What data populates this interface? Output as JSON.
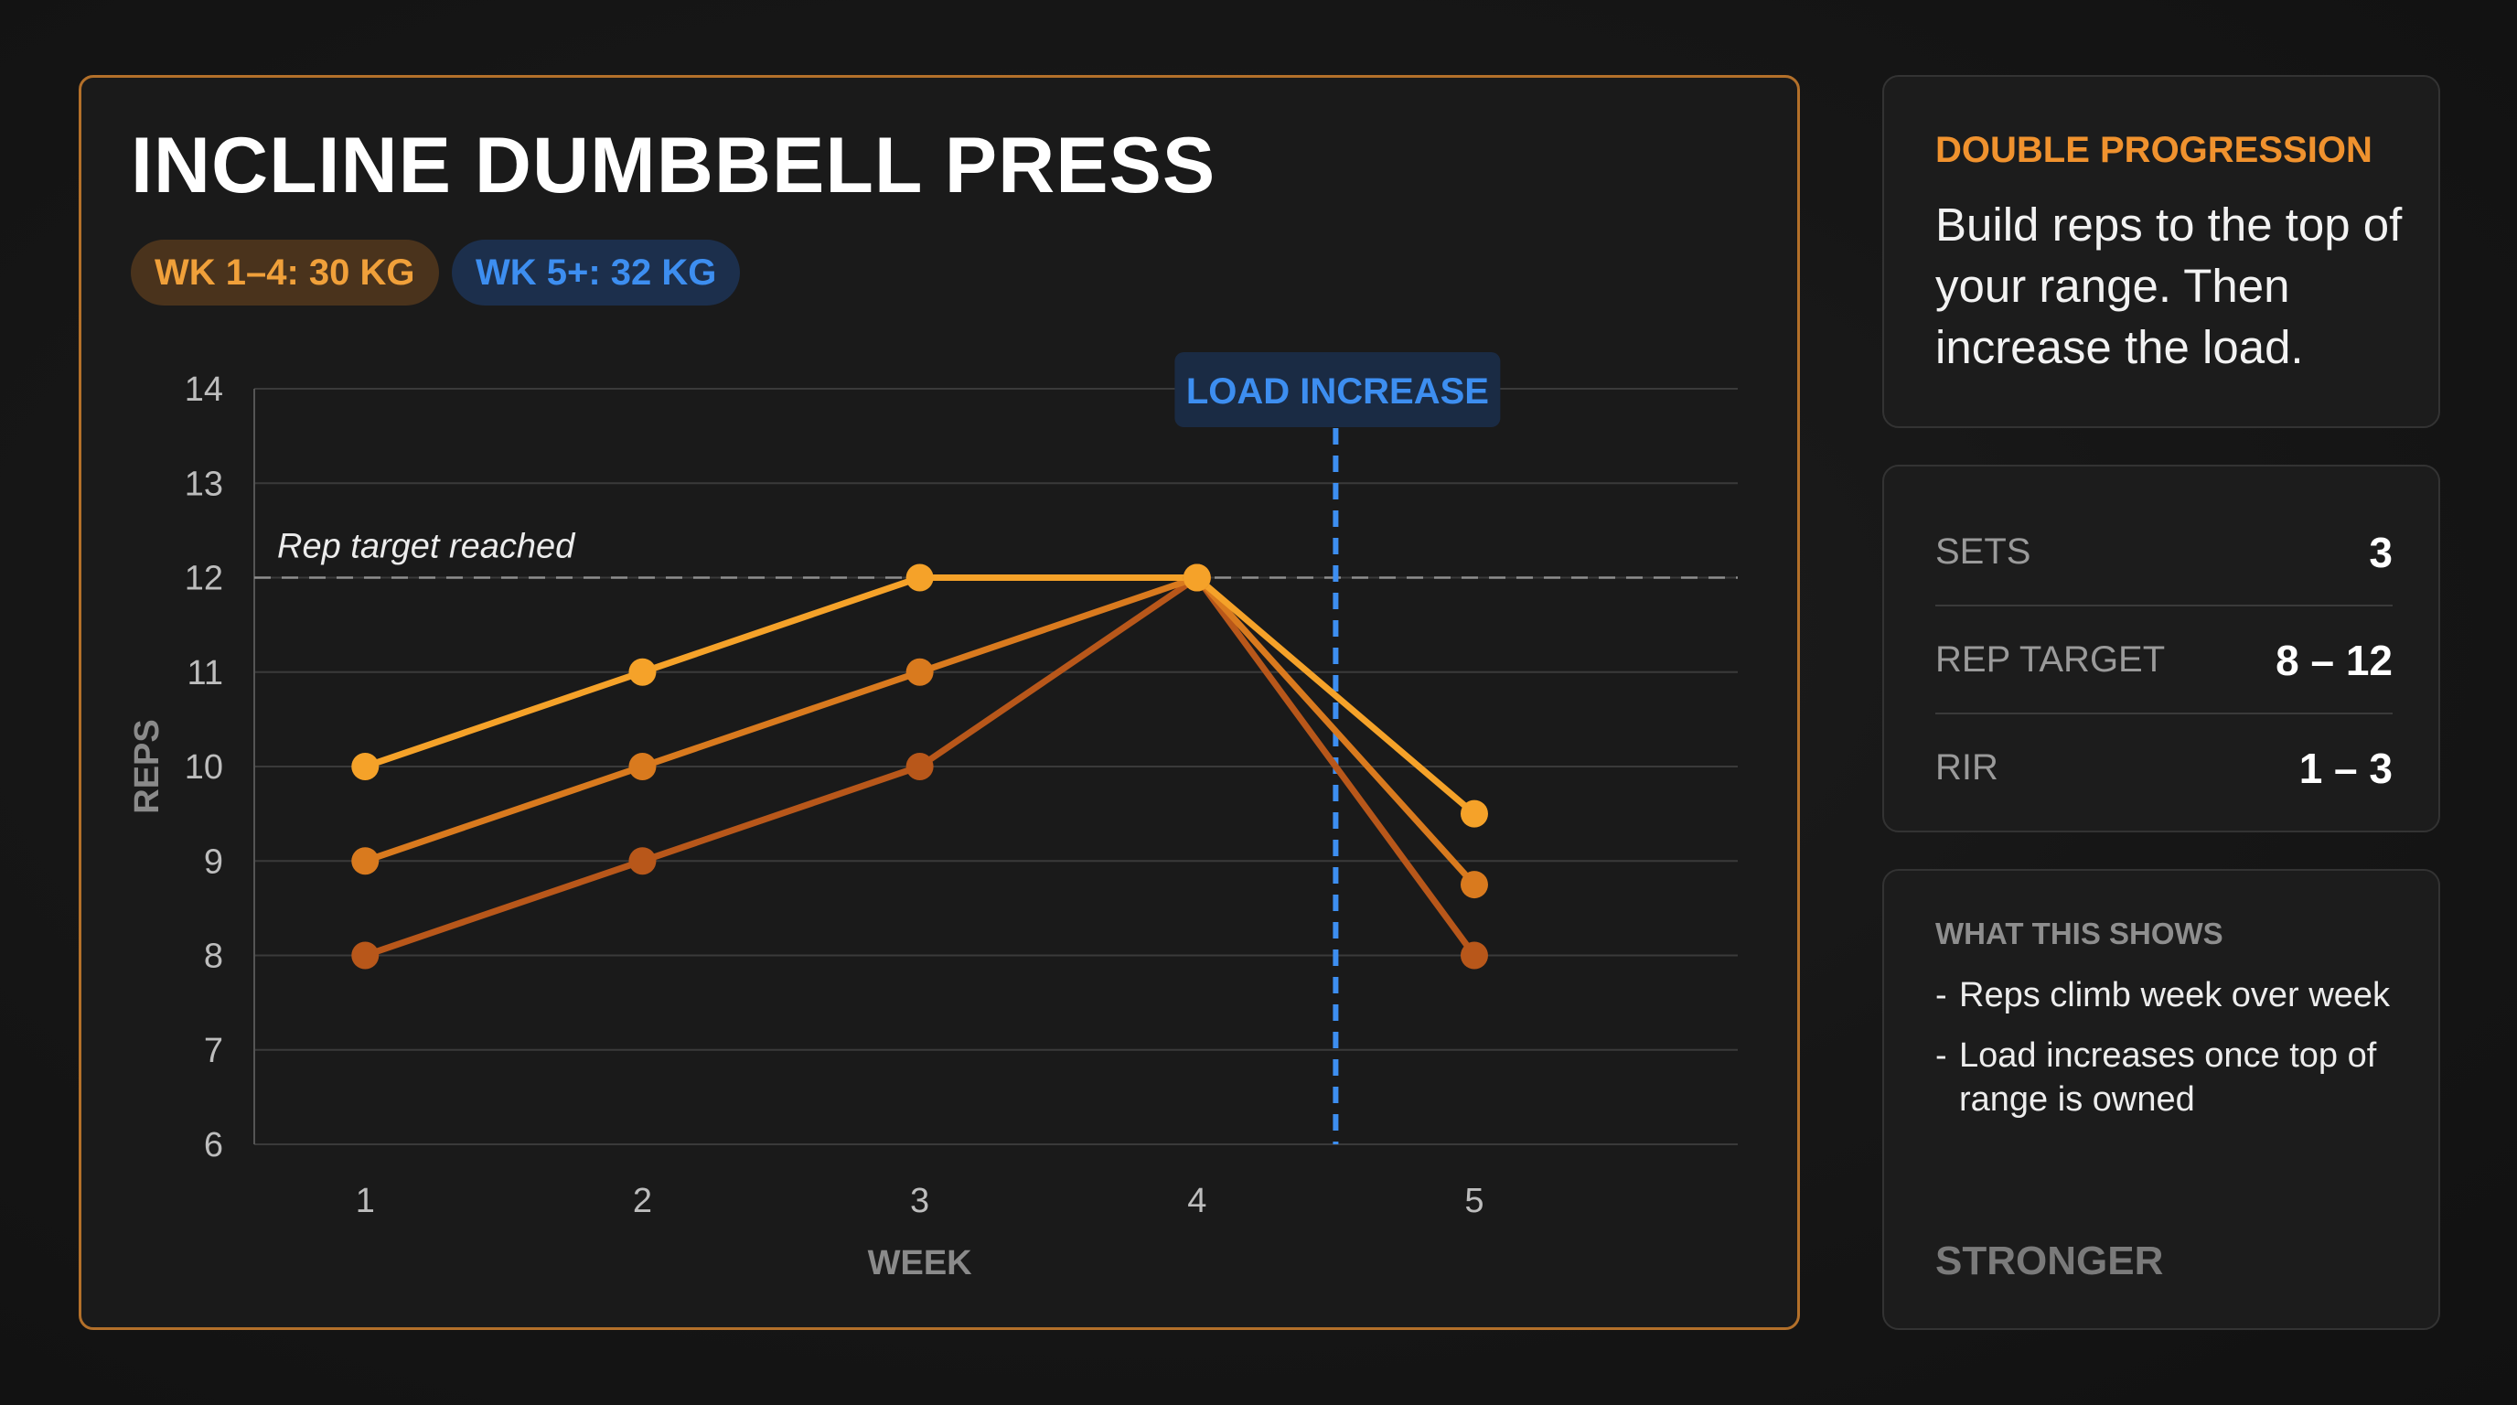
{
  "header": {
    "title": "INCLINE DUMBBELL PRESS",
    "pills": [
      {
        "label": "WK 1–4: 30 KG",
        "color": "#f0a03a"
      },
      {
        "label": "WK 5+: 32 KG",
        "color": "#3d8ef0"
      }
    ]
  },
  "chart_data": {
    "type": "line",
    "x": [
      1,
      2,
      3,
      4,
      5
    ],
    "xlabel": "WEEK",
    "ylabel": "REPS",
    "ylim": [
      6,
      14
    ],
    "yticks": [
      6,
      7,
      8,
      9,
      10,
      11,
      12,
      13,
      14
    ],
    "grid": true,
    "series": [
      {
        "values": [
          10,
          11,
          12,
          12,
          9.5
        ],
        "color": "#f5a229"
      },
      {
        "values": [
          9,
          10,
          11,
          12,
          8.75
        ],
        "color": "#d97a1e"
      },
      {
        "values": [
          8,
          9,
          10,
          12,
          8
        ],
        "color": "#b8571a"
      }
    ],
    "reference_line": {
      "y": 12,
      "label": "Rep target reached"
    },
    "marker_line": {
      "x": 4.5,
      "label": "LOAD INCREASE",
      "color": "#3d8ef0"
    }
  },
  "progression": {
    "label": "DOUBLE PROGRESSION",
    "text": "Build reps to the top of your range. Then increase the load."
  },
  "stats": [
    {
      "label": "SETS",
      "value": "3"
    },
    {
      "label": "REP TARGET",
      "value": "8 – 12"
    },
    {
      "label": "RIR",
      "value": "1 – 3"
    }
  ],
  "notes": {
    "title": "WHAT THIS SHOWS",
    "items": [
      "Reps climb week over week",
      "Load increases once top of range is owned"
    ],
    "footer": "STRONGER"
  }
}
